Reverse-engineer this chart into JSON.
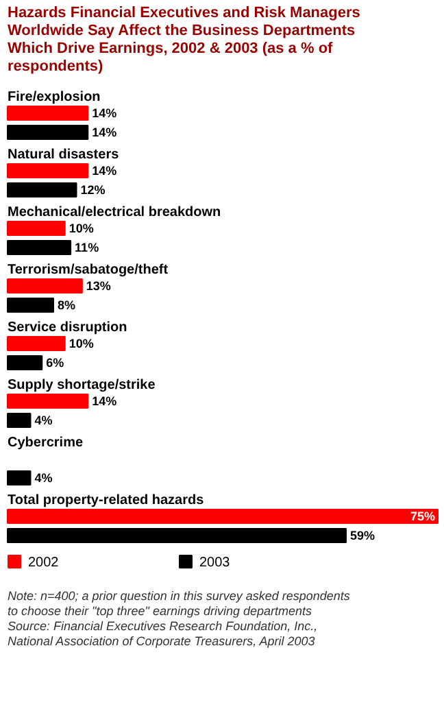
{
  "chart_data": {
    "type": "bar",
    "orientation": "horizontal",
    "title": "Hazards Financial Executives and Risk Managers Worldwide Say Affect the Business Departments Which Drive Earnings, 2002 & 2003 (as a % of respondents)",
    "categories": [
      "Fire/explosion",
      "Natural disasters",
      "Mechanical/electrical breakdown",
      "Terrorism/sabatoge/theft",
      "Service disruption",
      "Supply shortage/strike",
      "Cybercrime",
      "Total property-related hazards"
    ],
    "series": [
      {
        "name": "2002",
        "color": "#ff0000",
        "values": [
          14,
          14,
          10,
          13,
          10,
          14,
          null,
          75
        ],
        "value_labels": [
          "14%",
          "14%",
          "10%",
          "13%",
          "10%",
          "14%",
          null,
          "75%"
        ]
      },
      {
        "name": "2003",
        "color": "#000000",
        "values": [
          14,
          12,
          11,
          8,
          6,
          4,
          4,
          59
        ],
        "value_labels": [
          "14%",
          "12%",
          "11%",
          "8%",
          "6%",
          "4%",
          "4%",
          "59%"
        ]
      }
    ],
    "legend": "bottom",
    "grid": false,
    "annotations": [
      "Note: n=400; a prior question in this survey asked respondents to choose their \"top three\" earnings driving departments",
      "Source: Financial Executives Research Foundation, Inc., National Association of Corporate Treasurers, April 2003"
    ]
  }
}
